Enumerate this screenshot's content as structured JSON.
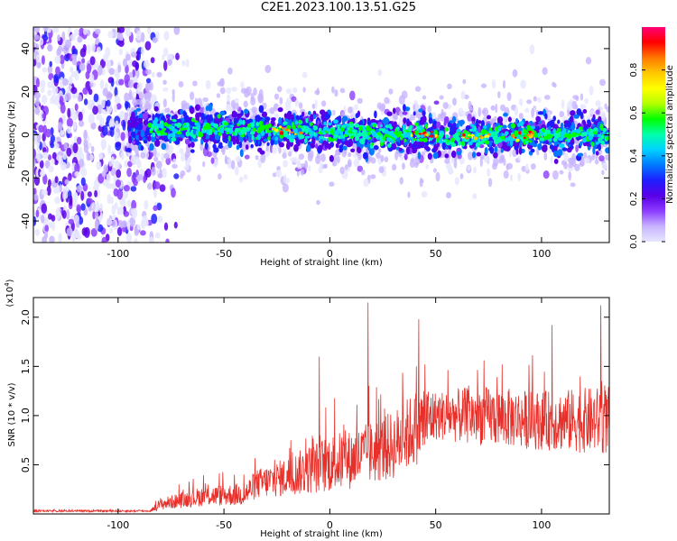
{
  "figure": {
    "title": "C2E1.2023.100.13.51.G25"
  },
  "colors": {
    "snr_line": "#e8302a",
    "colorbar": [
      "#e6e6ff",
      "#c8b4ff",
      "#8c3cff",
      "#5a00e6",
      "#1e1eff",
      "#0078ff",
      "#00d2ff",
      "#00ffaa",
      "#00ff00",
      "#b4ff00",
      "#ffff00",
      "#ffc800",
      "#ff7800",
      "#ff0000",
      "#ff0078"
    ]
  },
  "chart_data": [
    {
      "type": "heatmap",
      "xlabel": "Height of straight line (km)",
      "ylabel": "Frequency (Hz)",
      "xlim": [
        -140,
        132
      ],
      "ylim": [
        -50,
        50
      ],
      "xticks": [
        -100,
        -50,
        0,
        50,
        100
      ],
      "yticks": [
        -40,
        -20,
        0,
        20,
        40
      ],
      "colorbar": {
        "label": "Normalized spectral amplitude",
        "range": [
          0,
          1
        ],
        "ticks": [
          "0.0",
          "0.2",
          "0.4",
          "0.6",
          "0.8"
        ]
      },
      "noise_region_x": [
        -140,
        -80
      ],
      "signal_band": {
        "x_start": -95,
        "center_frequency_hz": 0,
        "center_points": [
          [
            -95,
            3
          ],
          [
            -70,
            3
          ],
          [
            -50,
            3
          ],
          [
            -20,
            2
          ],
          [
            0,
            1
          ],
          [
            30,
            0
          ],
          [
            45,
            0
          ],
          [
            70,
            -1
          ],
          [
            100,
            0
          ],
          [
            132,
            0
          ]
        ],
        "halfwidth_hz": 8,
        "brightest_x": [
          -20,
          45,
          70,
          90
        ]
      },
      "grid": false
    },
    {
      "type": "line",
      "xlabel": "Height of straight line (km)",
      "ylabel": "SNR (10 * v/v)",
      "y_scale_label": "(x10",
      "y_scale_exp": "4",
      "y_scale_close": ")",
      "xlim": [
        -140,
        132
      ],
      "ylim": [
        0,
        2.2
      ],
      "xticks": [
        -100,
        -50,
        0,
        50,
        100
      ],
      "yticks": [
        "0.5",
        "1.0",
        "1.5",
        "2.0"
      ],
      "trend": {
        "x": [
          -140,
          -85,
          -80,
          -60,
          -40,
          -35,
          -20,
          -10,
          0,
          10,
          30,
          45,
          50,
          70,
          100,
          132
        ],
        "mean": [
          0.03,
          0.03,
          0.1,
          0.18,
          0.2,
          0.3,
          0.38,
          0.45,
          0.52,
          0.55,
          0.7,
          0.95,
          1.0,
          1.0,
          0.95,
          0.95
        ],
        "spread": [
          0.01,
          0.01,
          0.06,
          0.1,
          0.12,
          0.15,
          0.2,
          0.25,
          0.3,
          0.3,
          0.35,
          0.4,
          0.25,
          0.3,
          0.3,
          0.35
        ]
      },
      "peaks": [
        [
          18,
          2.15
        ],
        [
          128,
          2.12
        ],
        [
          42,
          1.98
        ],
        [
          105,
          1.92
        ],
        [
          -5,
          1.6
        ]
      ],
      "grid": false
    }
  ]
}
